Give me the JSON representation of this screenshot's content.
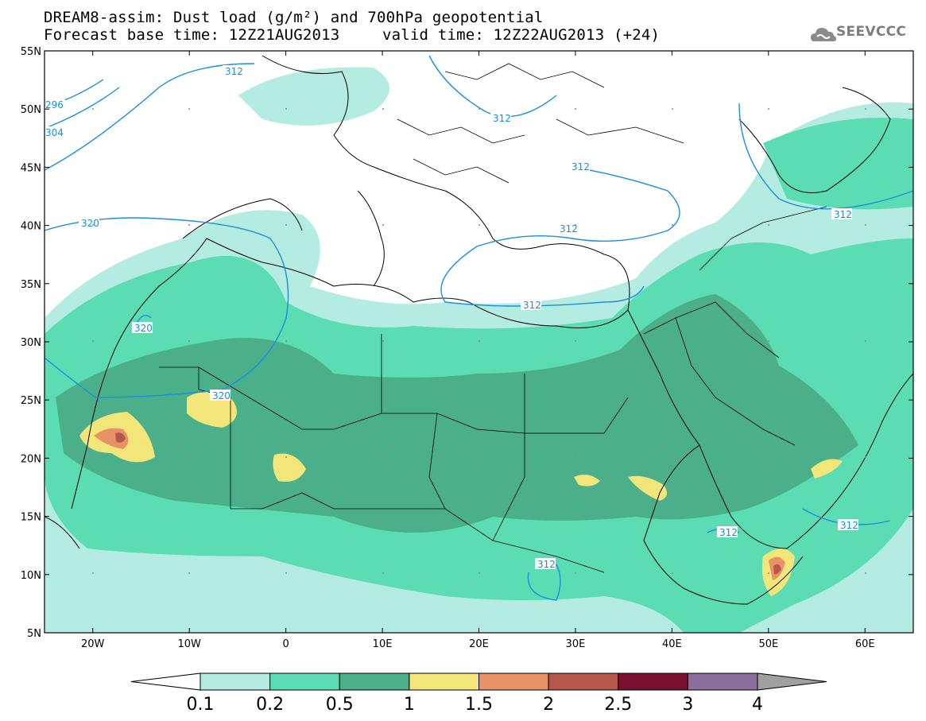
{
  "header": {
    "line1": "DREAM8-assim: Dust load (g/m²) and 700hPa geopotential",
    "line2_left": "Forecast base time: 12Z21AUG2013",
    "line2_right": "valid time: 12Z22AUG2013 (+24)"
  },
  "logo": {
    "text": "SEEVCCC",
    "icon": "cloud-logo-icon"
  },
  "map": {
    "lat_labels": [
      "55N",
      "50N",
      "45N",
      "40N",
      "35N",
      "30N",
      "25N",
      "20N",
      "15N",
      "10N",
      "5N"
    ],
    "lon_labels": [
      "20W",
      "10W",
      "0",
      "10E",
      "20E",
      "30E",
      "40E",
      "50E",
      "60E"
    ],
    "contour_color": "#1a8fe0",
    "contour_labels": [
      "312",
      "296",
      "304",
      "312",
      "312",
      "312",
      "320",
      "320",
      "320",
      "312",
      "312",
      "312",
      "312",
      "312"
    ]
  },
  "colorbar": {
    "labels": [
      "0.1",
      "0.2",
      "0.5",
      "1",
      "1.5",
      "2",
      "2.5",
      "3",
      "4"
    ],
    "colors": [
      "#ffffff",
      "#b5ece2",
      "#5cdcb3",
      "#4bb08a",
      "#f2e57a",
      "#e99267",
      "#b5574a",
      "#7a1030",
      "#8c6e9c",
      "#a0a0a0"
    ]
  },
  "chart_data": {
    "type": "heatmap",
    "title": "DREAM8-assim: Dust load (g/m²) and 700hPa geopotential",
    "levels": [
      0.1,
      0.2,
      0.5,
      1,
      1.5,
      2,
      2.5,
      3,
      4
    ],
    "lat_range": [
      5,
      55
    ],
    "lon_range": [
      -25,
      65
    ],
    "contour_values": [
      296,
      304,
      312,
      320
    ]
  }
}
